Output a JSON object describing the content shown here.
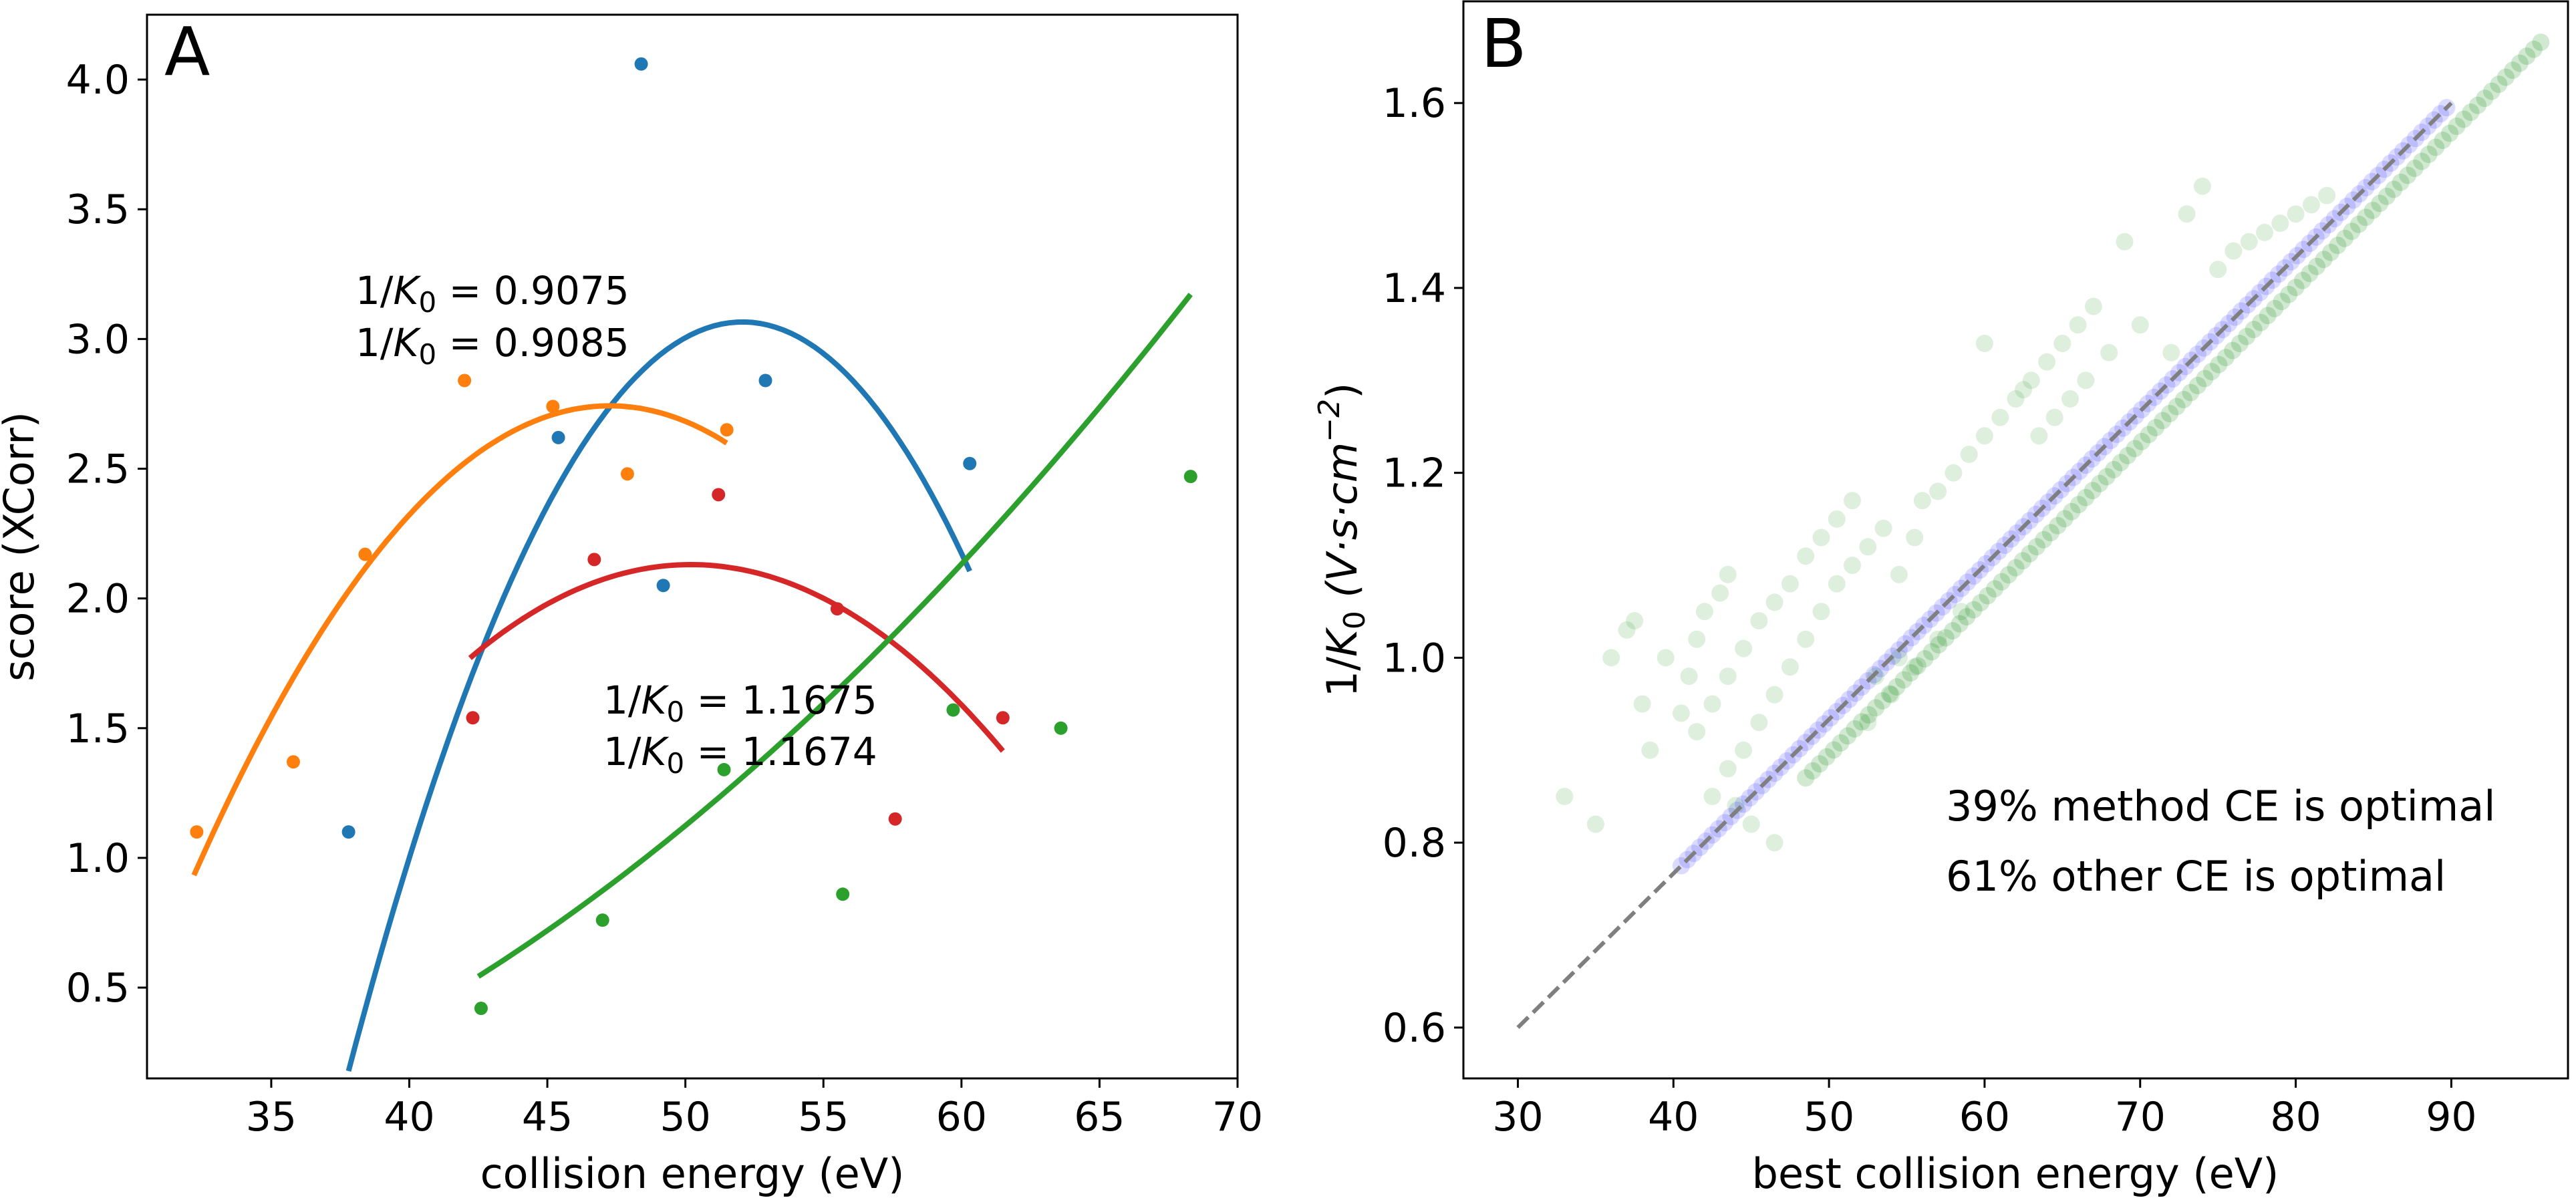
{
  "colors": {
    "blue": "#1f77b4",
    "orange": "#ff7f0e",
    "red": "#d62728",
    "green": "#2ca02c",
    "method_blue": "#0000ff",
    "other_green": "#008000",
    "diagonal": "#7f7f7f"
  },
  "chart_data": [
    {
      "panel_label": "A",
      "type": "scatter",
      "xlabel": "collision energy (eV)",
      "ylabel": "score (XCorr)",
      "xlim": [
        30.5,
        70
      ],
      "ylim": [
        0.15,
        4.25
      ],
      "xticks": [
        "35",
        "40",
        "45",
        "50",
        "55",
        "60",
        "65",
        "70"
      ],
      "yticks": [
        "0.5",
        "1.0",
        "1.5",
        "2.0",
        "2.5",
        "3.0",
        "3.5",
        "4.0"
      ],
      "grid": false,
      "series": [
        {
          "color_key": "blue",
          "label_prefix": "1/",
          "label_italic": "K",
          "label_sub": "0",
          "label_value": " = 0.9075",
          "points": [
            [
              37.8,
              1.1
            ],
            [
              45.4,
              2.62
            ],
            [
              48.4,
              4.06
            ],
            [
              49.2,
              2.05
            ],
            [
              52.9,
              2.84
            ],
            [
              60.3,
              2.52
            ]
          ],
          "fit": {
            "x_range": [
              37.8,
              60.3
            ],
            "a": -0.01418,
            "b": 1.4767,
            "c": -35.38
          }
        },
        {
          "color_key": "orange",
          "label_prefix": "1/",
          "label_italic": "K",
          "label_sub": "0",
          "label_value": " = 0.9085",
          "points": [
            [
              32.3,
              1.1
            ],
            [
              35.8,
              1.37
            ],
            [
              38.4,
              2.17
            ],
            [
              42.0,
              2.84
            ],
            [
              45.2,
              2.74
            ],
            [
              47.9,
              2.48
            ],
            [
              51.5,
              2.65
            ]
          ],
          "fit": {
            "x_range": [
              32.2,
              51.5
            ],
            "a": -0.00798,
            "b": 0.75424,
            "c": -15.0795
          }
        },
        {
          "color_key": "red",
          "label_prefix": "1/",
          "label_italic": "K",
          "label_sub": "0",
          "label_value": " = 1.1675",
          "points": [
            [
              42.3,
              1.54
            ],
            [
              46.7,
              2.15
            ],
            [
              51.2,
              2.4
            ],
            [
              55.5,
              1.96
            ],
            [
              57.6,
              1.15
            ],
            [
              61.5,
              1.54
            ]
          ],
          "fit": {
            "x_range": [
              42.2,
              61.5
            ],
            "a": -0.005626,
            "b": 0.56484,
            "c": -12.0468
          }
        },
        {
          "color_key": "green",
          "label_prefix": "1/",
          "label_italic": "K",
          "label_sub": "0",
          "label_value": " = 1.1674",
          "points": [
            [
              42.6,
              0.42
            ],
            [
              47.0,
              0.76
            ],
            [
              51.4,
              1.34
            ],
            [
              55.7,
              0.86
            ],
            [
              59.7,
              1.57
            ],
            [
              63.6,
              1.5
            ],
            [
              68.3,
              2.47
            ]
          ],
          "fit": {
            "x_range": [
              42.5,
              68.3
            ],
            "a": 0.0013335,
            "b": -0.04585,
            "c": 0.08296
          }
        }
      ]
    },
    {
      "panel_label": "B",
      "type": "scatter",
      "xlabel": "best collision energy (eV)",
      "ylabel_prefix": "1/",
      "ylabel_italic": "K",
      "ylabel_sub": "0",
      "ylabel_paren": " (V·s·cm",
      "ylabel_sup": "−2",
      "ylabel_close": ")",
      "xlim": [
        26.5,
        97.5
      ],
      "ylim": [
        0.545,
        1.71
      ],
      "xticks": [
        "30",
        "40",
        "50",
        "60",
        "70",
        "80",
        "90"
      ],
      "yticks": [
        "0.6",
        "0.8",
        "1.0",
        "1.2",
        "1.4",
        "1.6"
      ],
      "grid": false,
      "diagonal": {
        "x": [
          30,
          90
        ],
        "y": [
          0.6,
          1.6
        ]
      },
      "method_band": {
        "x_start": 40.5,
        "x_end": 90,
        "y_start": 0.775,
        "y_end": 1.6
      },
      "other_band": {
        "x_start": 48.5,
        "x_end": 96,
        "y_start": 0.87,
        "y_end": 1.67
      },
      "other_scatter": [
        [
          33,
          0.85
        ],
        [
          35,
          0.82
        ],
        [
          36,
          1.0
        ],
        [
          37,
          1.03
        ],
        [
          37.5,
          1.04
        ],
        [
          38,
          0.95
        ],
        [
          38.5,
          0.9
        ],
        [
          39.5,
          1.0
        ],
        [
          40.5,
          0.94
        ],
        [
          41,
          0.98
        ],
        [
          41.5,
          1.02
        ],
        [
          42,
          1.05
        ],
        [
          43,
          1.07
        ],
        [
          43.5,
          1.09
        ],
        [
          41.5,
          0.92
        ],
        [
          42.5,
          0.95
        ],
        [
          43.5,
          0.98
        ],
        [
          44.5,
          1.01
        ],
        [
          45.5,
          1.04
        ],
        [
          46.5,
          1.06
        ],
        [
          42.5,
          0.85
        ],
        [
          43.5,
          0.88
        ],
        [
          44.5,
          0.9
        ],
        [
          45.5,
          0.93
        ],
        [
          46.5,
          0.96
        ],
        [
          47.5,
          0.99
        ],
        [
          48.5,
          1.02
        ],
        [
          47.5,
          1.08
        ],
        [
          48.5,
          1.11
        ],
        [
          49.5,
          1.13
        ],
        [
          50.5,
          1.15
        ],
        [
          51.5,
          1.17
        ],
        [
          53.5,
          1.14
        ],
        [
          49.5,
          1.05
        ],
        [
          50.5,
          1.08
        ],
        [
          51.5,
          1.1
        ],
        [
          52.5,
          1.12
        ],
        [
          54.5,
          1.09
        ],
        [
          55.5,
          1.13
        ],
        [
          56,
          1.17
        ],
        [
          57,
          1.18
        ],
        [
          58,
          1.2
        ],
        [
          59,
          1.22
        ],
        [
          60,
          1.24
        ],
        [
          61,
          1.26
        ],
        [
          62,
          1.28
        ],
        [
          63,
          1.3
        ],
        [
          64,
          1.32
        ],
        [
          65,
          1.34
        ],
        [
          66,
          1.36
        ],
        [
          67,
          1.38
        ],
        [
          60,
          1.34
        ],
        [
          62.5,
          1.29
        ],
        [
          63.5,
          1.24
        ],
        [
          64.5,
          1.26
        ],
        [
          65.5,
          1.28
        ],
        [
          66.5,
          1.3
        ],
        [
          68,
          1.33
        ],
        [
          69,
          1.45
        ],
        [
          70,
          1.36
        ],
        [
          72,
          1.33
        ],
        [
          73,
          1.48
        ],
        [
          74,
          1.51
        ],
        [
          75,
          1.42
        ],
        [
          78,
          1.46
        ],
        [
          80,
          1.48
        ],
        [
          82,
          1.5
        ],
        [
          76,
          1.44
        ],
        [
          77,
          1.45
        ],
        [
          79,
          1.47
        ],
        [
          81,
          1.49
        ],
        [
          58.5,
          1.05
        ],
        [
          57,
          1.02
        ],
        [
          55.5,
          0.99
        ],
        [
          54,
          0.96
        ],
        [
          52.5,
          0.93
        ],
        [
          46.5,
          0.8
        ],
        [
          45,
          0.82
        ],
        [
          44,
          0.84
        ],
        [
          53,
          0.98
        ],
        [
          54.5,
          1.0
        ]
      ],
      "annotations": [
        {
          "text": "39% method CE is optimal",
          "color_key": "method_blue"
        },
        {
          "text": "61% other CE is optimal",
          "color_key": "other_green"
        }
      ]
    }
  ]
}
